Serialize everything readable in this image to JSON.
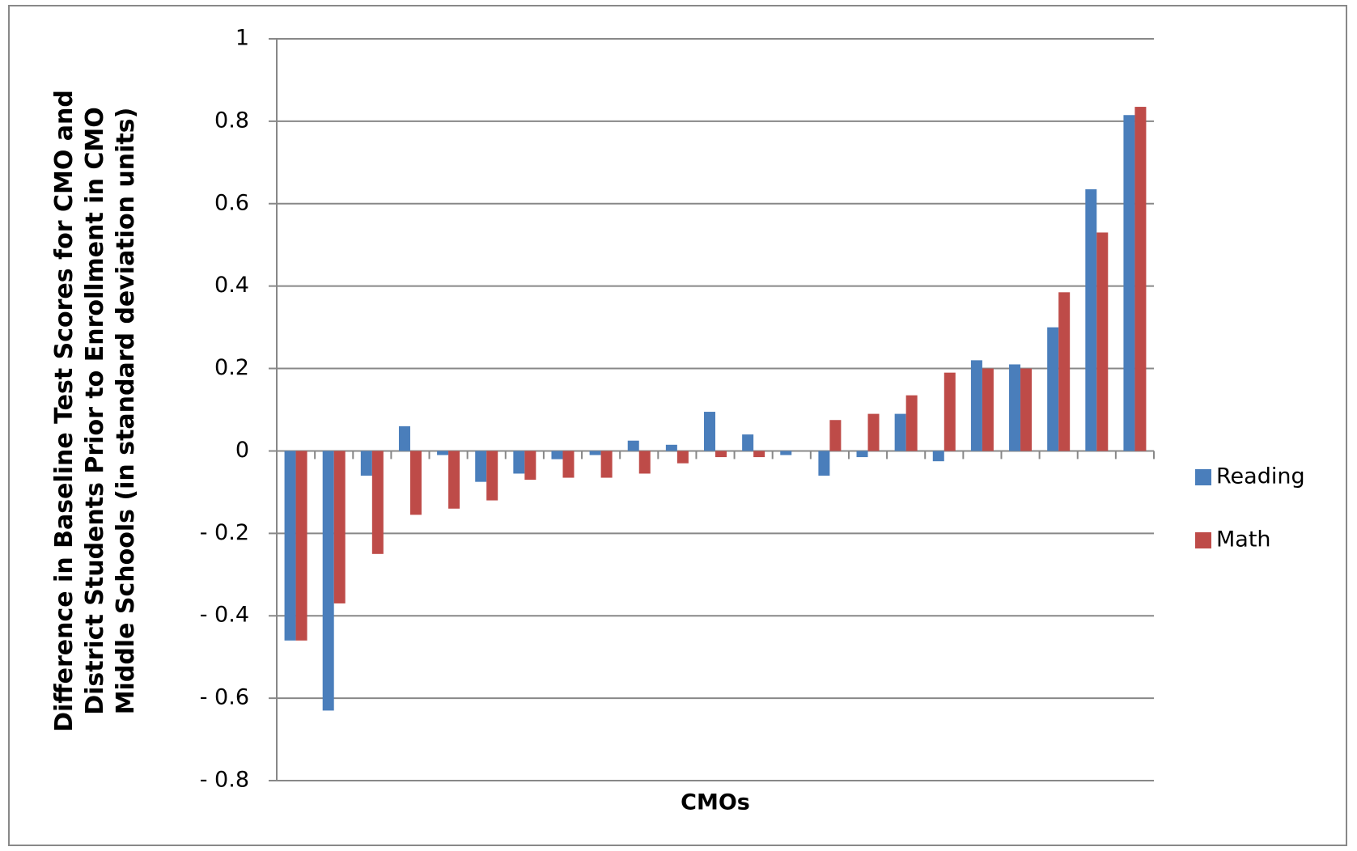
{
  "chart_data": {
    "type": "bar",
    "y_axis_label": "Difference in Baseline Test Scores for CMO and District Students Prior to Enrollment in CMO Middle Schools (in standard deviation units)",
    "x_axis_label": "CMOs",
    "categories": [
      null,
      null,
      null,
      null,
      null,
      null,
      null,
      null,
      null,
      null,
      null,
      null,
      null,
      null,
      null,
      null,
      null,
      null,
      null,
      null,
      null,
      null,
      null
    ],
    "series": [
      {
        "name": "Reading",
        "color": "#4a7ebb",
        "values": [
          -0.46,
          -0.63,
          -0.06,
          0.06,
          -0.01,
          -0.075,
          -0.055,
          -0.02,
          -0.01,
          0.025,
          0.015,
          0.095,
          0.04,
          -0.01,
          -0.06,
          -0.015,
          0.09,
          -0.025,
          0.22,
          0.21,
          0.3,
          0.635,
          0.815
        ]
      },
      {
        "name": "Math",
        "color": "#be4b48",
        "values": [
          -0.46,
          -0.37,
          -0.25,
          -0.155,
          -0.14,
          -0.12,
          -0.07,
          -0.065,
          -0.065,
          -0.055,
          -0.03,
          -0.015,
          -0.015,
          0,
          0.075,
          0.09,
          0.135,
          0.19,
          0.2,
          0.2,
          0.385,
          0.53,
          0.835
        ]
      }
    ],
    "ylim": [
      -0.8,
      1
    ],
    "yticks": [
      {
        "value": -0.8,
        "label": "- 0.8"
      },
      {
        "value": -0.6,
        "label": "- 0.6"
      },
      {
        "value": -0.4,
        "label": "- 0.4"
      },
      {
        "value": -0.2,
        "label": "- 0.2"
      },
      0,
      0.2,
      0.4,
      0.6,
      0.8,
      1
    ],
    "grid": true,
    "legend": "right"
  }
}
